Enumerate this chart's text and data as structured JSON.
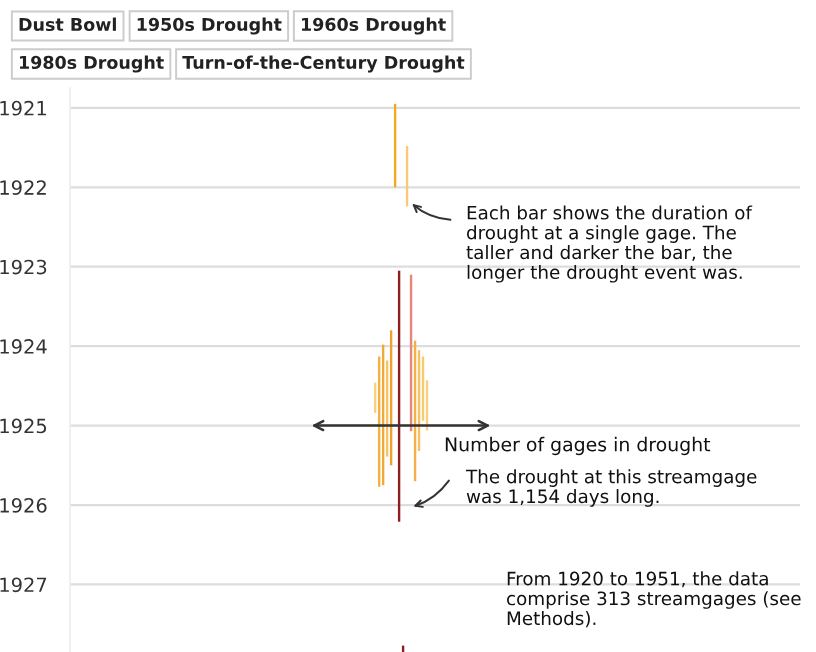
{
  "chart_data": {
    "type": "bar",
    "xlabel": "Number of gages in drought",
    "categories": [
      null,
      null,
      null,
      null,
      null,
      null,
      null,
      null,
      null,
      null,
      null,
      null,
      null,
      null,
      null,
      null,
      null,
      null,
      null,
      null,
      null,
      null,
      null,
      null,
      null,
      null,
      null,
      null,
      null,
      null,
      null,
      null,
      null,
      null,
      null,
      null,
      null,
      null,
      null,
      null,
      null,
      null,
      null,
      null,
      null,
      null,
      null,
      null,
      null,
      null,
      null,
      null,
      null,
      null,
      null,
      null,
      null,
      null,
      null,
      null,
      null,
      null,
      null,
      null,
      null,
      null,
      null,
      null,
      null,
      null,
      null,
      null,
      null,
      null,
      null,
      null,
      null,
      null,
      null,
      null,
      null,
      null,
      null,
      null,
      null,
      null,
      null,
      null,
      null,
      null,
      null,
      null,
      null,
      null,
      null,
      null,
      null,
      null,
      null,
      null,
      null,
      null,
      null,
      null,
      null,
      null,
      null,
      null,
      null,
      null,
      null,
      null,
      null,
      null,
      null,
      null,
      null,
      null,
      null,
      null,
      null,
      null,
      null,
      null,
      null,
      null,
      null,
      null,
      null,
      null,
      null,
      null,
      null,
      null,
      null,
      null,
      null,
      null,
      null,
      null,
      null,
      null,
      null,
      null,
      null,
      null,
      null,
      null,
      null,
      null,
      null,
      null,
      null,
      null,
      null,
      null,
      null,
      null,
      null,
      null,
      null,
      null,
      null,
      null,
      null,
      null,
      null,
      null,
      null,
      null,
      null,
      null,
      null,
      null,
      null,
      null,
      null,
      null,
      null,
      null,
      null,
      null,
      null
    ],
    "series": [
      {
        "values": [
          null,
          null,
          null,
          null,
          null,
          null,
          null,
          null,
          null,
          null,
          null,
          null,
          null,
          null,
          null,
          null,
          null,
          null,
          null,
          null,
          null,
          null,
          null,
          null,
          null,
          null,
          null,
          null,
          null,
          null,
          null,
          null,
          null,
          null,
          null,
          null,
          null,
          null,
          null,
          null,
          null,
          null,
          null,
          null,
          null,
          null,
          null,
          null,
          null,
          null,
          null,
          null,
          null,
          null,
          null,
          null,
          null,
          null,
          null,
          null,
          null,
          null,
          null,
          null,
          null,
          null,
          null,
          null,
          null,
          null,
          null,
          null,
          null,
          null,
          null,
          null,
          0.38,
          1.64,
          1.77,
          1.21,
          1.7,
          1.05,
          3.16,
          0.08,
          0.76,
          1.97,
          1.77,
          1.27,
          0.81,
          0.63,
          null,
          null,
          null,
          null,
          null,
          null,
          null,
          null,
          null,
          null,
          null,
          null,
          null,
          null,
          null,
          null,
          null,
          null,
          null,
          null,
          null,
          null,
          null,
          null,
          null,
          null,
          null,
          null,
          null,
          null,
          null,
          null,
          null,
          null,
          null,
          null,
          null,
          null,
          null,
          null,
          null,
          null,
          null,
          null,
          null,
          null,
          null,
          null,
          null,
          null,
          null,
          null,
          null,
          null,
          null,
          null,
          null,
          null,
          null,
          null,
          null,
          null,
          null,
          null,
          null,
          null,
          null,
          null,
          null,
          null,
          null,
          null,
          null,
          null,
          null,
          null,
          null,
          null,
          null,
          null,
          null,
          null,
          null,
          null,
          null,
          null,
          null,
          null,
          null,
          null,
          null,
          null,
          null
        ],
        "base": [
          null,
          null,
          null,
          null,
          null,
          null,
          null,
          null,
          null,
          null,
          null,
          null,
          null,
          null,
          null,
          null,
          null,
          null,
          null,
          null,
          null,
          null,
          null,
          null,
          null,
          null,
          null,
          null,
          null,
          null,
          null,
          null,
          null,
          null,
          null,
          null,
          null,
          null,
          null,
          null,
          null,
          null,
          null,
          null,
          null,
          null,
          null,
          null,
          null,
          null,
          null,
          null,
          null,
          null,
          null,
          null,
          null,
          null,
          null,
          null,
          null,
          null,
          null,
          null,
          null,
          null,
          null,
          null,
          null,
          null,
          null,
          null,
          null,
          null,
          null,
          null,
          1924.46,
          1924.13,
          1923.98,
          1924.18,
          1923.8,
          1920.95,
          1923.05,
          1927.77,
          1921.48,
          1923.1,
          1923.93,
          1924.05,
          1924.13,
          1924.43,
          null,
          null,
          null,
          null,
          null,
          null,
          null,
          null,
          null,
          null,
          null,
          null,
          null,
          null,
          null,
          null,
          null,
          null,
          null,
          null,
          null,
          null,
          null,
          null,
          null,
          null,
          null,
          null,
          null,
          null,
          null,
          null,
          null,
          null,
          null,
          null,
          null,
          null,
          null,
          null,
          null,
          null,
          null,
          null,
          null,
          null,
          null,
          null,
          null,
          null,
          null,
          null,
          null,
          null,
          null,
          null,
          null,
          null,
          null,
          null,
          null,
          null,
          null,
          null,
          null,
          null,
          null,
          null,
          null,
          null,
          null,
          null,
          null,
          null,
          null,
          null,
          null,
          null,
          null,
          null,
          null,
          null,
          null,
          null,
          null,
          null,
          null,
          null,
          null,
          null,
          null,
          null,
          null
        ],
        "colors": [
          null,
          null,
          null,
          null,
          null,
          null,
          null,
          null,
          null,
          null,
          null,
          null,
          null,
          null,
          null,
          null,
          null,
          null,
          null,
          null,
          null,
          null,
          null,
          null,
          null,
          null,
          null,
          null,
          null,
          null,
          null,
          null,
          null,
          null,
          null,
          null,
          null,
          null,
          null,
          null,
          null,
          null,
          null,
          null,
          null,
          null,
          null,
          null,
          null,
          null,
          null,
          null,
          null,
          null,
          null,
          null,
          null,
          null,
          null,
          null,
          null,
          null,
          null,
          null,
          null,
          null,
          null,
          null,
          null,
          null,
          null,
          null,
          null,
          null,
          null,
          null,
          "#f9cf80",
          "#f5b040",
          "#f2a93b",
          "#f7c262",
          "#f0a030",
          "#f5a623",
          "#8b1e1e",
          "#8b1e1e",
          "#f9c97a",
          "#e8867a",
          "#f4b048",
          "#f7c060",
          "#f8ca70",
          "#f9d080",
          null,
          null,
          null,
          null,
          null,
          null,
          null,
          null,
          null,
          null,
          null,
          null,
          null,
          null,
          null,
          null,
          null,
          null,
          null,
          null,
          null,
          null,
          null,
          null,
          null,
          null,
          null,
          null,
          null,
          null,
          null,
          null,
          null,
          null,
          null,
          null,
          null,
          null,
          null,
          null,
          null,
          null,
          null,
          null,
          null,
          null,
          null,
          null,
          null,
          null,
          null,
          null,
          null,
          null,
          null,
          null,
          null,
          null,
          null,
          null,
          null,
          null,
          null,
          null,
          null,
          null,
          null,
          null,
          null,
          null,
          null,
          null,
          null,
          null,
          null,
          null,
          null,
          null,
          null,
          null,
          null,
          null,
          null,
          null,
          null,
          null,
          null,
          null,
          null,
          null,
          null,
          null,
          null
        ]
      }
    ],
    "ylim": [
      1927.85,
      1920.75
    ],
    "yticks": [
      1921,
      1922,
      1923,
      1924,
      1925,
      1926,
      1927
    ],
    "grid": "y",
    "annotations": [
      "Dust Bowl",
      "1950s Drought",
      "1960s Drought",
      "1980s Drought",
      "Turn-of-the-Century Drought",
      "Each bar shows the duration of\ndrought at a single gage. The\ntaller and darker the bar, the\nlonger the drought event was.",
      "The drought at this streamgage\nwas 1,154 days long.",
      "From 1920 to 1951, the data\ncomprise 313 streamgages (see\nMethods)."
    ]
  }
}
